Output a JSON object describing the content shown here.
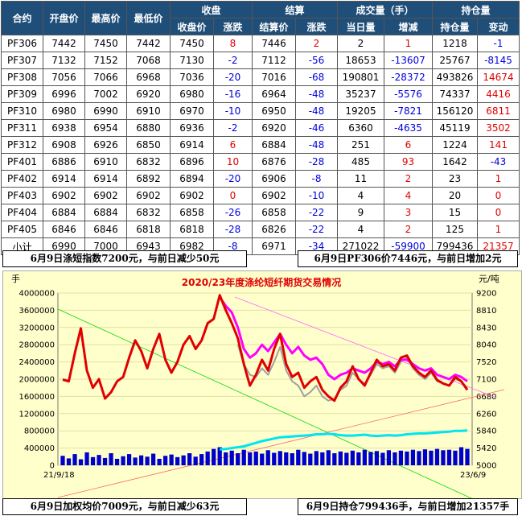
{
  "table": {
    "headers_top": [
      "合约",
      "开盘价",
      "最高价",
      "最低价",
      "收盘",
      "结算",
      "成交量（手）",
      "持仓量"
    ],
    "headers_sub": [
      "收盘价",
      "涨跌",
      "结算价",
      "涨跌",
      "当日量",
      "增减",
      "持仓量",
      "变动"
    ],
    "rows": [
      [
        "PF306",
        "7442",
        "7450",
        "7442",
        "7450",
        "8",
        "7446",
        "2",
        "2",
        "1",
        "1218",
        "-1"
      ],
      [
        "PF307",
        "7132",
        "7152",
        "7068",
        "7130",
        "-2",
        "7112",
        "-56",
        "18653",
        "-13607",
        "25767",
        "-8145"
      ],
      [
        "PF308",
        "7056",
        "7066",
        "6968",
        "7036",
        "-20",
        "7016",
        "-68",
        "190801",
        "-28372",
        "493826",
        "14674"
      ],
      [
        "PF309",
        "6996",
        "7002",
        "6920",
        "6980",
        "-16",
        "6964",
        "-48",
        "35237",
        "-5576",
        "74337",
        "4416"
      ],
      [
        "PF310",
        "6980",
        "6990",
        "6910",
        "6970",
        "-10",
        "6950",
        "-48",
        "19205",
        "-7821",
        "156120",
        "6811"
      ],
      [
        "PF311",
        "6938",
        "6954",
        "6880",
        "6936",
        "-2",
        "6920",
        "-46",
        "6360",
        "-4635",
        "45119",
        "3502"
      ],
      [
        "PF312",
        "6908",
        "6926",
        "6850",
        "6914",
        "6",
        "6884",
        "-48",
        "251",
        "6",
        "1224",
        "141"
      ],
      [
        "PF401",
        "6886",
        "6910",
        "6832",
        "6896",
        "10",
        "6876",
        "-28",
        "485",
        "93",
        "1642",
        "-43"
      ],
      [
        "PF402",
        "6914",
        "6914",
        "6892",
        "6894",
        "-20",
        "6906",
        "-8",
        "11",
        "2",
        "23",
        "1"
      ],
      [
        "PF403",
        "6902",
        "6902",
        "6902",
        "6902",
        "0",
        "6902",
        "-10",
        "4",
        "4",
        "20",
        "0"
      ],
      [
        "PF404",
        "6884",
        "6884",
        "6832",
        "6858",
        "-26",
        "6858",
        "-22",
        "9",
        "3",
        "15",
        "0"
      ],
      [
        "PF405",
        "6846",
        "6846",
        "6818",
        "6818",
        "-28",
        "6826",
        "-22",
        "4",
        "2",
        "125",
        "1"
      ],
      [
        "小计",
        "6990",
        "7000",
        "6943",
        "6982",
        "-8",
        "6971",
        "-34",
        "271022",
        "-59900",
        "799436",
        "21357"
      ]
    ]
  },
  "banners": {
    "top_left": "6月9日涤短指数7200元，与前日减少50元",
    "top_right": "6月9日PF306价7446元，与前日增加2元",
    "bottom_left": "6月9日加权均价7009元，与前日减少63元",
    "bottom_right": "6月9日持仓799436手，与前日增加21357手"
  },
  "chart_data": {
    "type": "line",
    "title": "2020/23年度涤纶短纤期货交易情况",
    "left_unit": "手",
    "right_unit": "元/吨",
    "x_start_label": "21/9/18",
    "x_end_label": "23/6/9",
    "left_axis": {
      "min": 0,
      "max": 4000000,
      "ticks": [
        "4000000",
        "3600000",
        "3200000",
        "2800000",
        "2400000",
        "2000000",
        "1600000",
        "1200000",
        "800000",
        "400000",
        "0"
      ]
    },
    "right_axis": {
      "min": 5000,
      "max": 9200,
      "ticks": [
        "9200",
        "8810",
        "8430",
        "8040",
        "7520",
        "7100",
        "6680",
        "6260",
        "5840",
        "5420",
        "5000"
      ]
    },
    "colors": {
      "red": "#e00000",
      "magenta": "#ff00ff",
      "gray": "#a0a0a0",
      "cyan": "#00e5ee",
      "blue": "#0000cc"
    },
    "series": [
      {
        "key": "red",
        "values": [
          1990000,
          1950000,
          2600000,
          3180000,
          2200000,
          1800000,
          2000000,
          1550000,
          1700000,
          1950000,
          2050000,
          2500000,
          2900000,
          2650000,
          2250000,
          2700000,
          3050000,
          2450000,
          2150000,
          2400000,
          2800000,
          3000000,
          2700000,
          2900000,
          3300000,
          3400000,
          3950000,
          3600000,
          3300000,
          2950000,
          2350000,
          1850000,
          2100000,
          2450000,
          2200000,
          2700000,
          3050000,
          2350000,
          2050000,
          2150000,
          1800000,
          1950000,
          2050000,
          1750000,
          1600000,
          1500000,
          1800000,
          1950000,
          2300000,
          2000000,
          1850000,
          2150000,
          2450000,
          2300000,
          2350000,
          2200000,
          2500000,
          2550000,
          2300000,
          2150000,
          2050000,
          2200000,
          1980000,
          1900000,
          1850000,
          2050000,
          1950000,
          1750000
        ]
      },
      {
        "key": "magenta",
        "values": [
          null,
          null,
          null,
          null,
          null,
          null,
          null,
          null,
          null,
          null,
          null,
          null,
          null,
          null,
          null,
          null,
          null,
          null,
          null,
          null,
          null,
          null,
          null,
          null,
          null,
          null,
          3900000,
          3700000,
          3550000,
          3200000,
          2700000,
          2500000,
          2600000,
          2800000,
          2650000,
          2850000,
          3050000,
          2800000,
          2600000,
          2750000,
          2550000,
          2450000,
          2500000,
          2350000,
          2100000,
          2000000,
          2100000,
          2150000,
          2250000,
          2200000,
          2150000,
          2250000,
          2400000,
          2350000,
          2400000,
          2300000,
          2450000,
          2450000,
          2350000,
          2250000,
          2200000,
          2250000,
          2100000,
          2050000,
          2000000,
          2100000,
          2050000,
          1950000
        ]
      },
      {
        "key": "gray",
        "values": [
          null,
          null,
          null,
          null,
          null,
          null,
          null,
          null,
          null,
          null,
          null,
          null,
          null,
          null,
          null,
          null,
          null,
          null,
          null,
          null,
          null,
          null,
          null,
          null,
          null,
          null,
          null,
          null,
          null,
          2800000,
          2350000,
          2100000,
          2050000,
          2250000,
          2100000,
          2400000,
          2750000,
          2200000,
          1950000,
          1850000,
          1600000,
          1700000,
          1850000,
          1600000,
          1500000,
          1550000,
          1750000,
          1850000,
          2150000,
          2000000,
          1900000,
          2100000,
          2350000,
          2250000,
          2300000,
          2150000,
          2400000,
          2500000,
          2250000,
          2100000,
          2000000,
          2150000,
          1950000,
          1900000,
          1850000,
          2000000,
          1950000,
          1800000
        ]
      },
      {
        "key": "cyan",
        "values": [
          null,
          null,
          null,
          null,
          null,
          null,
          null,
          null,
          null,
          null,
          null,
          null,
          null,
          null,
          null,
          null,
          null,
          null,
          null,
          null,
          null,
          null,
          null,
          null,
          null,
          null,
          370000,
          380000,
          400000,
          420000,
          440000,
          480000,
          520000,
          560000,
          590000,
          620000,
          650000,
          660000,
          670000,
          680000,
          690000,
          700000,
          720000,
          720000,
          730000,
          720000,
          700000,
          690000,
          690000,
          700000,
          710000,
          690000,
          680000,
          690000,
          700000,
          690000,
          700000,
          720000,
          730000,
          740000,
          740000,
          750000,
          760000,
          770000,
          780000,
          800000,
          800000,
          810000
        ]
      },
      {
        "key": "blue",
        "values": [
          220000,
          160000,
          260000,
          140000,
          300000,
          190000,
          240000,
          170000,
          280000,
          150000,
          210000,
          260000,
          180000,
          230000,
          200000,
          270000,
          150000,
          220000,
          250000,
          190000,
          230000,
          280000,
          200000,
          260000,
          320000,
          380000,
          420000,
          300000,
          340000,
          280000,
          360000,
          300000,
          320000,
          270000,
          350000,
          290000,
          330000,
          300000,
          280000,
          360000,
          310000,
          270000,
          330000,
          300000,
          350000,
          280000,
          320000,
          290000,
          340000,
          300000,
          360000,
          310000,
          330000,
          290000,
          350000,
          300000,
          340000,
          320000,
          360000,
          330000,
          370000,
          340000,
          380000,
          350000,
          360000,
          340000,
          420000,
          380000
        ]
      }
    ]
  }
}
